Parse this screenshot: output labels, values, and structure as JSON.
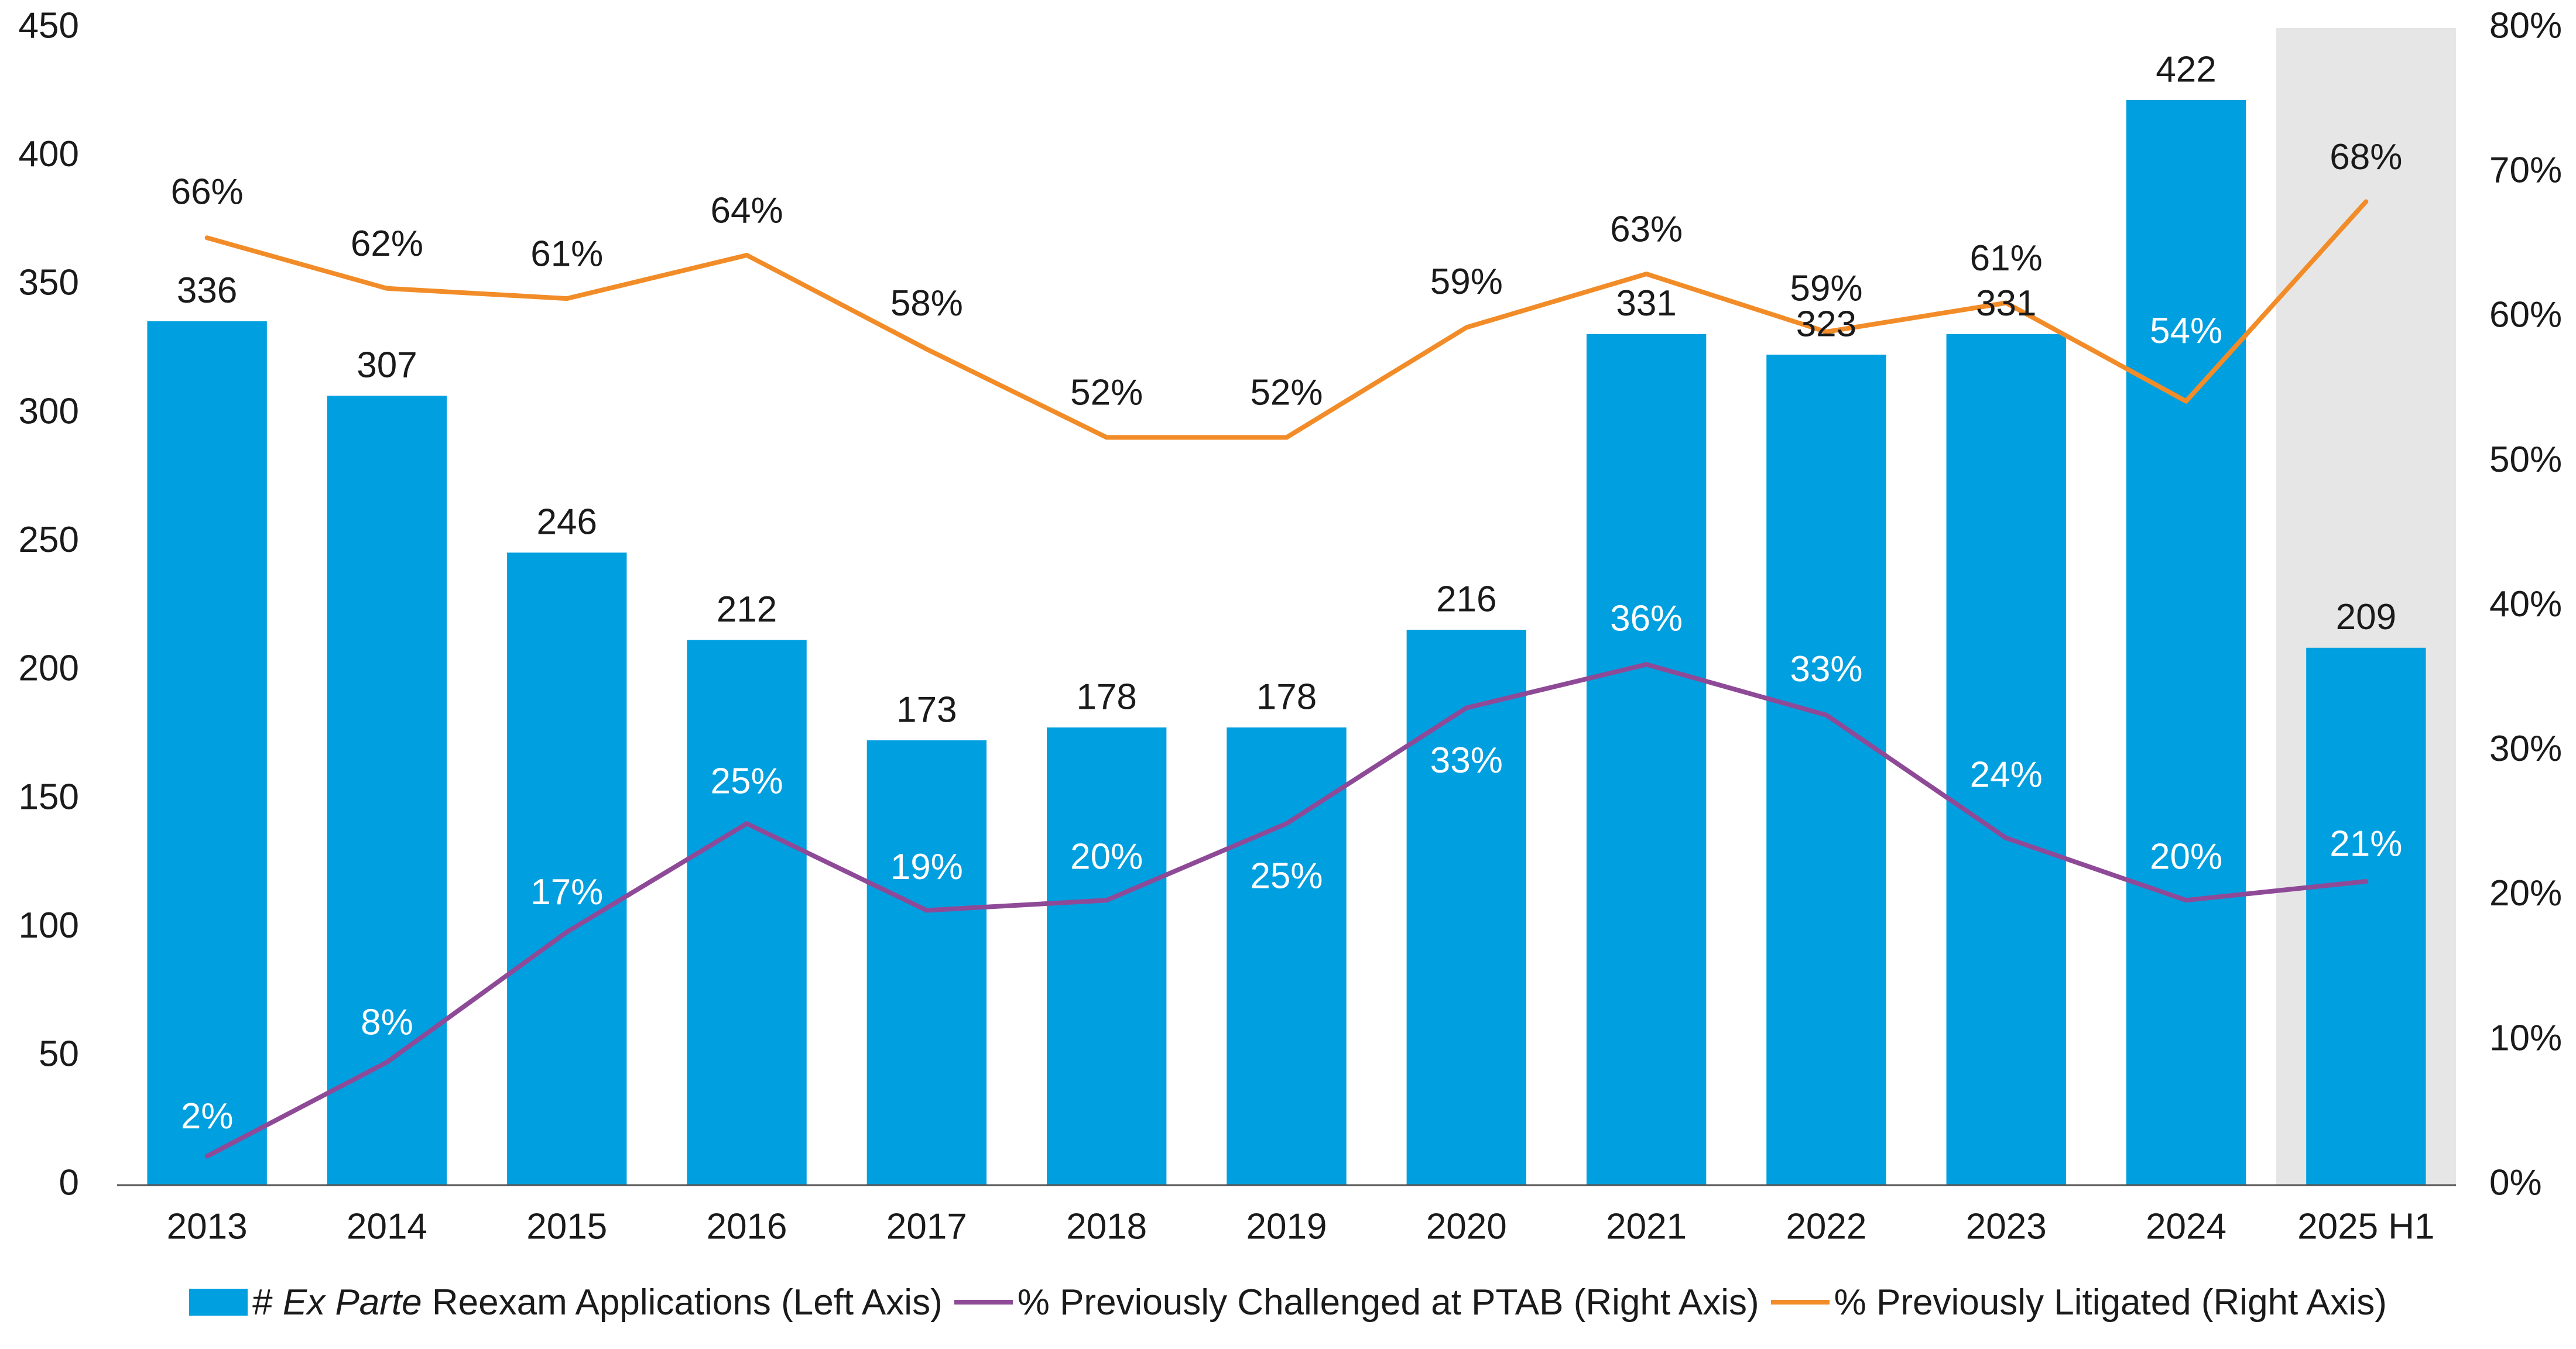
{
  "chart_data": {
    "type": "bar",
    "categories": [
      "2013",
      "2014",
      "2015",
      "2016",
      "2017",
      "2018",
      "2019",
      "2020",
      "2021",
      "2022",
      "2023",
      "2024",
      "2025 H1"
    ],
    "highlight_category": "2025 H1",
    "highlight_color": "#e6e6e6",
    "left_axis": {
      "ylim": [
        0,
        450
      ],
      "ticks": [
        "0",
        "50",
        "100",
        "150",
        "200",
        "250",
        "300",
        "350",
        "400",
        "450"
      ]
    },
    "right_axis": {
      "ylim": [
        0,
        80
      ],
      "ticks": [
        "0%",
        "10%",
        "20%",
        "30%",
        "40%",
        "50%",
        "60%",
        "70%",
        "80%"
      ]
    },
    "series": [
      {
        "name_prefix": "# ",
        "name_italic": "Ex Parte",
        "name_suffix": " Reexam Applications (Left Axis)",
        "kind": "bar",
        "axis": "left",
        "color": "#009fdf",
        "values": [
          336,
          307,
          246,
          212,
          173,
          178,
          178,
          216,
          331,
          323,
          331,
          422,
          209
        ],
        "labels": [
          "336",
          "307",
          "246",
          "212",
          "173",
          "178",
          "178",
          "216",
          "331",
          "323",
          "331",
          "422",
          "209"
        ]
      },
      {
        "name": "% Previously Challenged at PTAB (Right Axis)",
        "kind": "line",
        "axis": "right",
        "color": "#8e4a97",
        "values": [
          2,
          8.5,
          17.5,
          25,
          19,
          19.7,
          25,
          33,
          36,
          32.5,
          24,
          19.7,
          21
        ],
        "labels": [
          "2%",
          "8%",
          "17%",
          "25%",
          "19%",
          "20%",
          "25%",
          "33%",
          "36%",
          "33%",
          "24%",
          "20%",
          "21%"
        ]
      },
      {
        "name": "% Previously Litigated (Right Axis)",
        "kind": "line",
        "axis": "right",
        "color": "#f28c28",
        "values": [
          65.5,
          62,
          61.3,
          64.3,
          57.8,
          51.7,
          51.7,
          59.3,
          63,
          59,
          61,
          54.2,
          68
        ],
        "labels": [
          "66%",
          "62%",
          "61%",
          "64%",
          "58%",
          "52%",
          "52%",
          "59%",
          "63%",
          "59%",
          "61%",
          "54%",
          "68%"
        ]
      }
    ]
  }
}
